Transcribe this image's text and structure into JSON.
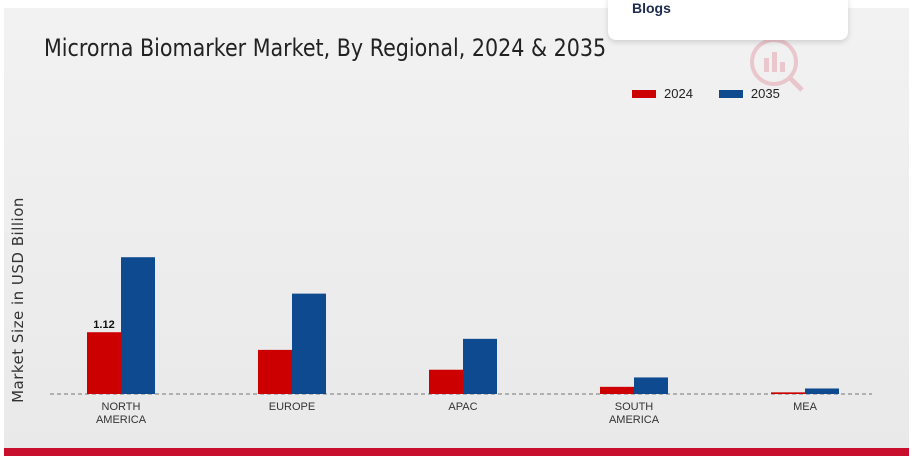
{
  "dropdown": {
    "item": "Blogs"
  },
  "chart_data": {
    "type": "bar",
    "title": "Microrna Biomarker Market, By Regional, 2024 & 2035",
    "xlabel": "",
    "ylabel": "Market Size in USD Billion",
    "categories": [
      [
        "NORTH",
        "AMERICA"
      ],
      [
        "EUROPE"
      ],
      [
        "APAC"
      ],
      [
        "SOUTH",
        "AMERICA"
      ],
      [
        "MEA"
      ]
    ],
    "series": [
      {
        "name": "2024",
        "color": "#cc0000",
        "values": [
          1.12,
          0.8,
          0.44,
          0.13,
          0.03
        ]
      },
      {
        "name": "2035",
        "color": "#0d4a8f",
        "values": [
          2.48,
          1.82,
          1.0,
          0.3,
          0.1
        ]
      }
    ],
    "data_labels": [
      {
        "series": 0,
        "index": 0,
        "text": "1.12"
      }
    ],
    "ylim": [
      0,
      3.3
    ],
    "grid": false,
    "legend_position": "top-right"
  }
}
